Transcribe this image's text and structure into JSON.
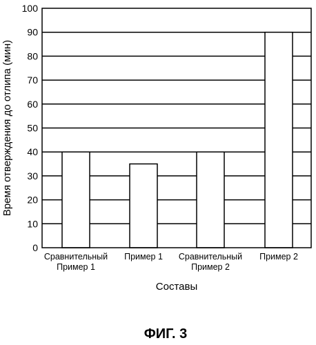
{
  "chart_data": {
    "type": "bar",
    "categories": [
      [
        "Сравнительный",
        "Пример 1"
      ],
      [
        "Пример 1"
      ],
      [
        "Сравнительный",
        "Пример 2"
      ],
      [
        "Пример 2"
      ]
    ],
    "values": [
      40,
      35,
      40,
      90
    ],
    "ylabel": "Время отверждения до отлипа (мин)",
    "xlabel": "Составы",
    "ylim": [
      0,
      100
    ],
    "yticks": [
      0,
      10,
      20,
      30,
      40,
      50,
      60,
      70,
      80,
      90,
      100
    ],
    "grid": true,
    "bar_fill": "#ffffff",
    "line_color": "#000000"
  },
  "caption": "ФИГ. 3"
}
